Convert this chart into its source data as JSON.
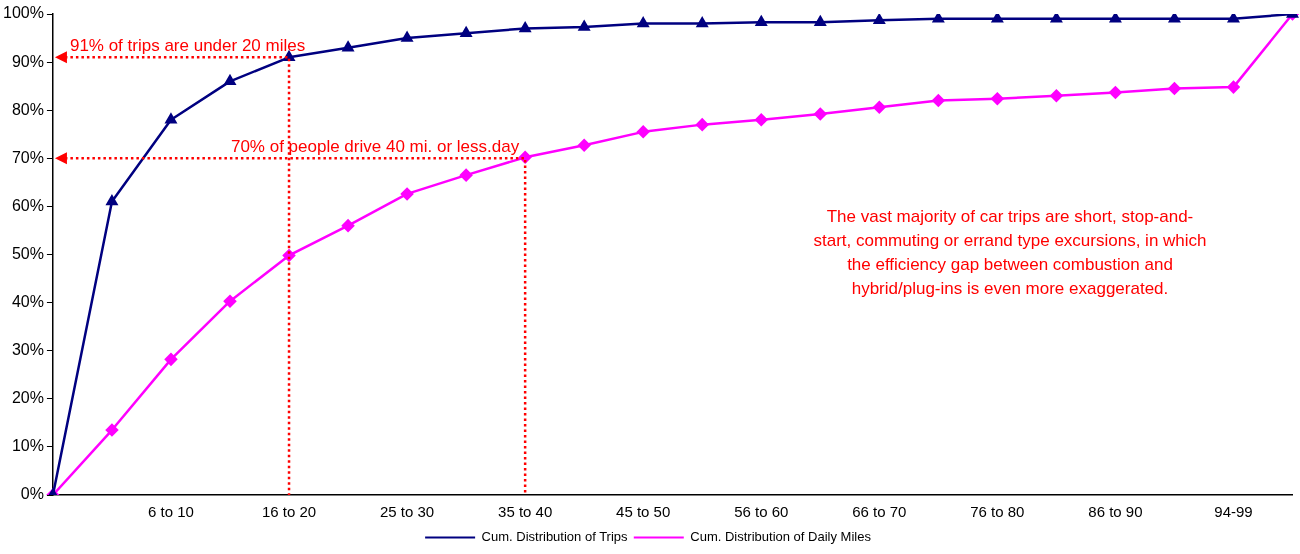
{
  "chart_data": {
    "type": "line",
    "categories": [
      null,
      null,
      "6 to 10",
      null,
      "16 to 20",
      null,
      "25 to 30",
      null,
      "35 to 40",
      null,
      "45 to 50",
      null,
      "56 to 60",
      null,
      "66 to 70",
      null,
      "76 to 80",
      null,
      "86 to 90",
      null,
      "94-99",
      null
    ],
    "series": [
      {
        "name": "Cum. Distribution of Trips",
        "color": "#000080",
        "marker": "triangle",
        "values": [
          0,
          61,
          78,
          86,
          91,
          93,
          95,
          96,
          97,
          97.3,
          98,
          98,
          98.3,
          98.3,
          98.7,
          99,
          99,
          99,
          99,
          99,
          99,
          100
        ]
      },
      {
        "name": "Cum. Distribution of Daily Miles",
        "color": "#ff00ff",
        "marker": "diamond",
        "values": [
          0,
          13.5,
          28.2,
          40.3,
          49.8,
          56,
          62.6,
          66.5,
          70.2,
          72.7,
          75.5,
          77,
          78,
          79.2,
          80.6,
          82,
          82.4,
          83,
          83.7,
          84.5,
          84.8,
          100
        ]
      }
    ],
    "ylim": [
      0,
      100
    ],
    "yticks": [
      {
        "value": 0,
        "label": "0%"
      },
      {
        "value": 10,
        "label": "10%"
      },
      {
        "value": 20,
        "label": "20%"
      },
      {
        "value": 30,
        "label": "30%"
      },
      {
        "value": 40,
        "label": "40%"
      },
      {
        "value": 50,
        "label": "50%"
      },
      {
        "value": 60,
        "label": "60%"
      },
      {
        "value": 70,
        "label": "70%"
      },
      {
        "value": 80,
        "label": "80%"
      },
      {
        "value": 90,
        "label": "90%"
      },
      {
        "value": 100,
        "label": "100%"
      }
    ],
    "grid": false,
    "legend": "bottom",
    "annotations": [
      {
        "text": "91% of trips are under 20 miles",
        "x": "16 to 20",
        "y": 91
      },
      {
        "text": "70% of people drive 40 mi. or less.day",
        "x": "35 to 40",
        "y": 70
      },
      "The vast majority of car trips are short, stop-and-start, commuting or errand type excursions, in which  the efficiency gap between combustion and hybrid/plug-ins is even more exaggerated."
    ]
  }
}
